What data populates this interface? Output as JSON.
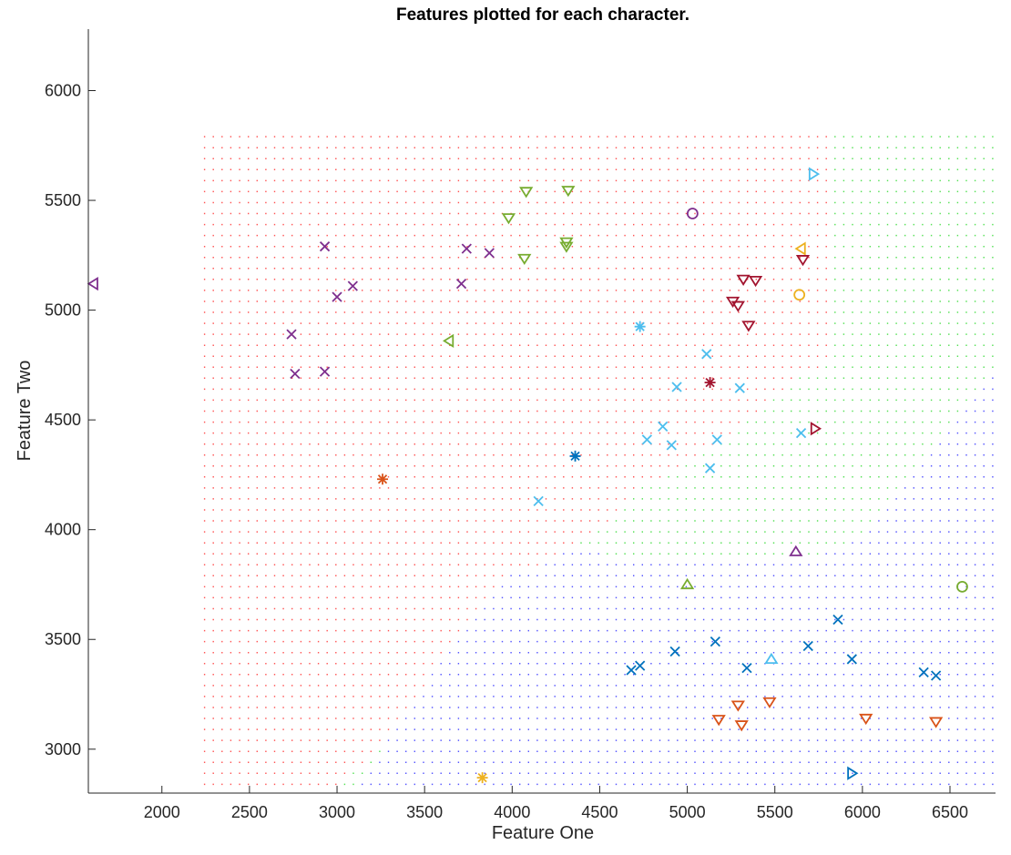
{
  "chart_data": {
    "type": "scatter",
    "title": "Features plotted for each character.",
    "xlabel": "Feature One",
    "ylabel": "Feature Two",
    "xlim": [
      1580,
      6760
    ],
    "ylim": [
      2800,
      6280
    ],
    "xticks": [
      2000,
      2500,
      3000,
      3500,
      4000,
      4500,
      5000,
      5500,
      6000,
      6500
    ],
    "yticks": [
      3000,
      3500,
      4000,
      4500,
      5000,
      5500,
      6000
    ],
    "grid": false,
    "legend": "none",
    "background_regions": {
      "xrange": [
        2240,
        6740
      ],
      "yrange": [
        2840,
        5800
      ],
      "step": 50,
      "colors": {
        "red": "#ff5555",
        "green": "#55e055",
        "blue": "#5555ff"
      },
      "red_green_boundary": [
        [
          5800,
          4750
        ],
        [
          5600,
          4680
        ],
        [
          5300,
          4470
        ],
        [
          5000,
          4300
        ],
        [
          4750,
          4200
        ],
        [
          4500,
          4000
        ],
        [
          4200,
          3850
        ],
        [
          3950,
          3800
        ],
        [
          3900,
          3700
        ],
        [
          3700,
          3500
        ],
        [
          3500,
          3300
        ],
        [
          3300,
          3050
        ],
        [
          3000,
          2840
        ]
      ],
      "green_blue_boundary": [
        [
          3900,
          3900
        ],
        [
          4200,
          3900
        ],
        [
          4800,
          3880
        ],
        [
          5400,
          3860
        ],
        [
          5700,
          3860
        ],
        [
          6000,
          3980
        ],
        [
          6200,
          4150
        ],
        [
          6400,
          4360
        ],
        [
          6550,
          4500
        ],
        [
          6740,
          4700
        ]
      ],
      "green_wedge_bottom": [
        [
          3900,
          3900
        ],
        [
          3800,
          3900
        ],
        [
          3650,
          3700
        ],
        [
          3500,
          3500
        ],
        [
          3350,
          3250
        ],
        [
          3200,
          3000
        ],
        [
          3050,
          2840
        ]
      ]
    },
    "series": [
      {
        "marker": "x",
        "color": "#7e2f8e",
        "points": [
          [
            2930,
            5290
          ],
          [
            3000,
            5060
          ],
          [
            3090,
            5110
          ],
          [
            3740,
            5280
          ],
          [
            3870,
            5260
          ],
          [
            3710,
            5120
          ],
          [
            2740,
            4890
          ],
          [
            2760,
            4710
          ],
          [
            2930,
            4720
          ]
        ]
      },
      {
        "marker": "triangle-down",
        "color": "#77ac30",
        "points": [
          [
            4080,
            5540
          ],
          [
            4320,
            5545
          ],
          [
            3980,
            5420
          ],
          [
            4310,
            5310
          ],
          [
            4310,
            5290
          ],
          [
            4070,
            5235
          ]
        ]
      },
      {
        "marker": "triangle-left",
        "color": "#77ac30",
        "points": [
          [
            3640,
            4860
          ]
        ]
      },
      {
        "marker": "triangle-up",
        "color": "#77ac30",
        "points": [
          [
            5000,
            3750
          ]
        ]
      },
      {
        "marker": "circle",
        "color": "#77ac30",
        "points": [
          [
            6570,
            3740
          ]
        ]
      },
      {
        "marker": "triangle-left",
        "color": "#7e2f8e",
        "points": [
          [
            1610,
            5120
          ]
        ]
      },
      {
        "marker": "circle",
        "color": "#7e2f8e",
        "points": [
          [
            5030,
            5440
          ]
        ]
      },
      {
        "marker": "triangle-up",
        "color": "#7e2f8e",
        "points": [
          [
            5620,
            3900
          ]
        ]
      },
      {
        "marker": "triangle-right",
        "color": "#4dbeee",
        "points": [
          [
            5720,
            5620
          ]
        ]
      },
      {
        "marker": "triangle-right",
        "color": "#0072bd",
        "points": [
          [
            5940,
            2890
          ]
        ]
      },
      {
        "marker": "triangle-left",
        "color": "#edb120",
        "points": [
          [
            5650,
            5280
          ]
        ]
      },
      {
        "marker": "circle",
        "color": "#edb120",
        "points": [
          [
            5640,
            5070
          ]
        ]
      },
      {
        "marker": "triangle-down",
        "color": "#a2142f",
        "points": [
          [
            5660,
            5230
          ],
          [
            5320,
            5140
          ],
          [
            5390,
            5135
          ],
          [
            5260,
            5040
          ],
          [
            5290,
            5020
          ],
          [
            5350,
            4930
          ]
        ]
      },
      {
        "marker": "triangle-right",
        "color": "#a2142f",
        "points": [
          [
            5730,
            4460
          ]
        ]
      },
      {
        "marker": "asterisk",
        "color": "#a2142f",
        "points": [
          [
            5130,
            4670
          ]
        ]
      },
      {
        "marker": "asterisk",
        "color": "#4dbeee",
        "points": [
          [
            4730,
            4925
          ]
        ]
      },
      {
        "marker": "x",
        "color": "#4dbeee",
        "points": [
          [
            5110,
            4800
          ],
          [
            4940,
            4650
          ],
          [
            5300,
            4645
          ],
          [
            4860,
            4470
          ],
          [
            4770,
            4410
          ],
          [
            4910,
            4385
          ],
          [
            5170,
            4410
          ],
          [
            5130,
            4280
          ],
          [
            4150,
            4130
          ],
          [
            5650,
            4440
          ]
        ]
      },
      {
        "marker": "asterisk",
        "color": "#0072bd",
        "points": [
          [
            4360,
            4335
          ]
        ]
      },
      {
        "marker": "asterisk",
        "color": "#d95319",
        "points": [
          [
            3260,
            4230
          ]
        ]
      },
      {
        "marker": "asterisk",
        "color": "#edb120",
        "points": [
          [
            3830,
            2870
          ]
        ]
      },
      {
        "marker": "triangle-up",
        "color": "#4dbeee",
        "points": [
          [
            5480,
            3410
          ]
        ]
      },
      {
        "marker": "x",
        "color": "#0072bd",
        "points": [
          [
            5860,
            3590
          ],
          [
            5160,
            3490
          ],
          [
            4930,
            3445
          ],
          [
            5690,
            3470
          ],
          [
            5940,
            3410
          ],
          [
            5340,
            3370
          ],
          [
            4730,
            3380
          ],
          [
            4680,
            3360
          ],
          [
            6350,
            3350
          ],
          [
            6420,
            3335
          ]
        ]
      },
      {
        "marker": "triangle-down",
        "color": "#d95319",
        "points": [
          [
            5470,
            3215
          ],
          [
            5290,
            3200
          ],
          [
            5180,
            3135
          ],
          [
            5310,
            3110
          ],
          [
            6020,
            3140
          ],
          [
            6420,
            3125
          ]
        ]
      }
    ]
  }
}
